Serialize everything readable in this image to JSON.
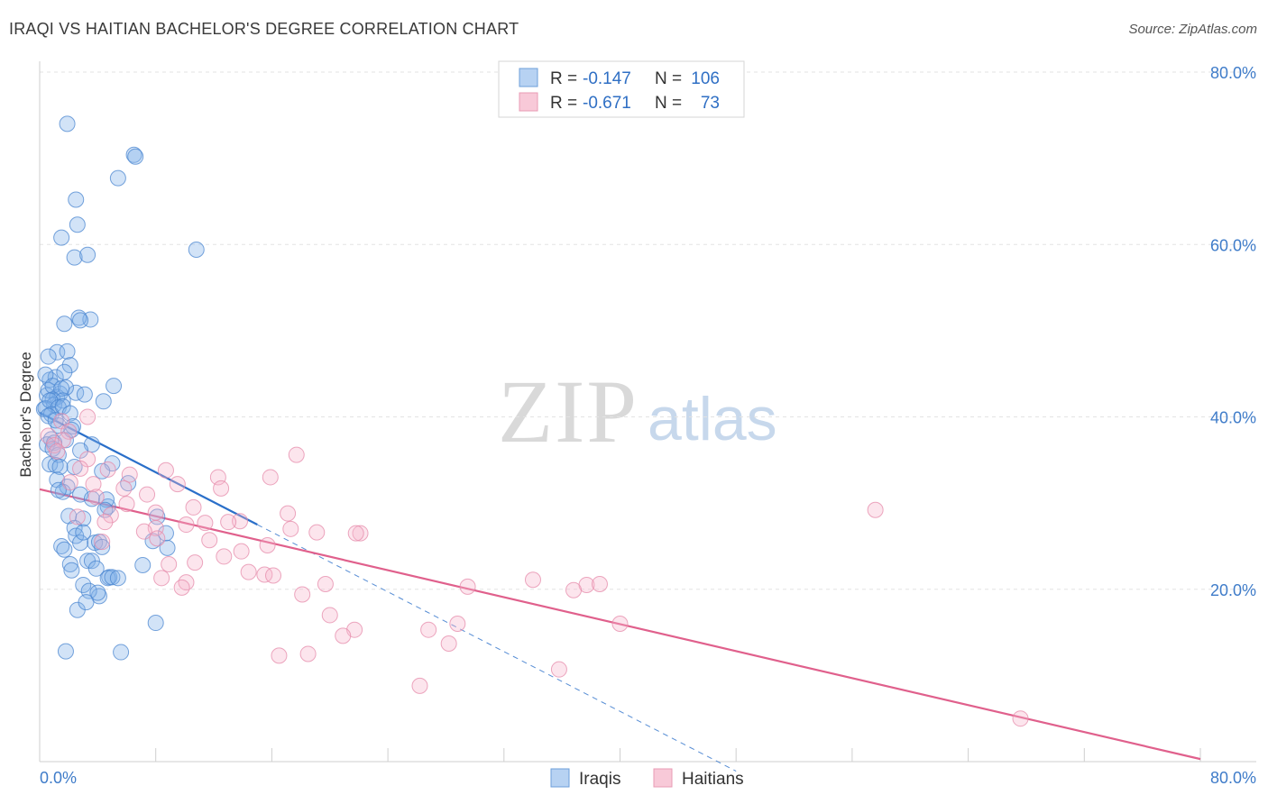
{
  "title": "IRAQI VS HAITIAN BACHELOR'S DEGREE CORRELATION CHART",
  "source": "Source: ZipAtlas.com",
  "watermark": {
    "zip": "ZIP",
    "atlas": "atlas"
  },
  "chart_data": {
    "type": "scatter",
    "ylabel": "Bachelor's Degree",
    "xlim": [
      0,
      80
    ],
    "ylim": [
      0,
      80
    ],
    "x_tick_labels": [
      "0.0%",
      "80.0%"
    ],
    "y_ticks": [
      20,
      40,
      60,
      80
    ],
    "y_tick_labels": [
      "20.0%",
      "40.0%",
      "60.0%",
      "80.0%"
    ],
    "legend_position": "bottom-center",
    "stats": [
      {
        "r_label": "R =",
        "r": "-0.147",
        "n_label": "N =",
        "n": "106"
      },
      {
        "r_label": "R =",
        "r": "-0.671",
        "n_label": "N =",
        "n": "73"
      }
    ],
    "series": [
      {
        "name": "Iraqis",
        "color": "#7fb0e8",
        "edge": "#4a86d0",
        "trend_color": "#2a6fc9",
        "trend": {
          "x0": 0,
          "y0": 40.5,
          "x1": 15,
          "y1": 27.5,
          "dash_to_x": 48
        },
        "points": [
          [
            1.9,
            74.0
          ],
          [
            6.5,
            70.4
          ],
          [
            6.6,
            70.2
          ],
          [
            5.4,
            67.7
          ],
          [
            2.5,
            65.2
          ],
          [
            2.6,
            62.3
          ],
          [
            1.5,
            60.8
          ],
          [
            10.8,
            59.4
          ],
          [
            2.4,
            58.5
          ],
          [
            3.3,
            58.8
          ],
          [
            3.5,
            51.3
          ],
          [
            2.7,
            51.5
          ],
          [
            1.7,
            50.8
          ],
          [
            2.8,
            51.2
          ],
          [
            1.2,
            47.5
          ],
          [
            1.9,
            47.6
          ],
          [
            0.6,
            47.0
          ],
          [
            2.1,
            46.0
          ],
          [
            0.7,
            44.3
          ],
          [
            1.1,
            44.6
          ],
          [
            1.7,
            45.2
          ],
          [
            0.4,
            44.9
          ],
          [
            5.1,
            43.6
          ],
          [
            2.5,
            42.8
          ],
          [
            1.4,
            42.7
          ],
          [
            0.5,
            42.5
          ],
          [
            0.6,
            43.1
          ],
          [
            1.2,
            42.3
          ],
          [
            0.9,
            43.6
          ],
          [
            3.1,
            42.6
          ],
          [
            4.4,
            41.8
          ],
          [
            1.8,
            43.4
          ],
          [
            1.5,
            43.3
          ],
          [
            0.9,
            42.0
          ],
          [
            1.0,
            41.4
          ],
          [
            0.3,
            40.9
          ],
          [
            1.6,
            41.9
          ],
          [
            0.4,
            41.0
          ],
          [
            0.7,
            41.9
          ],
          [
            1.3,
            41.1
          ],
          [
            0.8,
            40.3
          ],
          [
            1.6,
            41.2
          ],
          [
            2.1,
            40.4
          ],
          [
            0.6,
            40.1
          ],
          [
            1.3,
            39.0
          ],
          [
            2.3,
            38.9
          ],
          [
            1.8,
            37.3
          ],
          [
            0.8,
            37.4
          ],
          [
            0.5,
            36.8
          ],
          [
            1.0,
            37.0
          ],
          [
            3.6,
            36.8
          ],
          [
            0.9,
            36.3
          ],
          [
            2.8,
            36.1
          ],
          [
            1.3,
            35.6
          ],
          [
            0.7,
            34.5
          ],
          [
            5.0,
            34.6
          ],
          [
            1.1,
            34.4
          ],
          [
            2.4,
            34.2
          ],
          [
            1.4,
            34.2
          ],
          [
            4.3,
            33.7
          ],
          [
            1.2,
            32.7
          ],
          [
            6.1,
            32.3
          ],
          [
            1.9,
            31.9
          ],
          [
            1.6,
            31.3
          ],
          [
            2.8,
            31.0
          ],
          [
            1.3,
            31.5
          ],
          [
            3.6,
            30.5
          ],
          [
            4.7,
            29.6
          ],
          [
            4.6,
            30.4
          ],
          [
            4.5,
            29.2
          ],
          [
            2.0,
            28.5
          ],
          [
            3.0,
            28.2
          ],
          [
            8.1,
            28.4
          ],
          [
            2.4,
            27.1
          ],
          [
            7.8,
            25.6
          ],
          [
            2.5,
            26.2
          ],
          [
            3.8,
            25.4
          ],
          [
            1.5,
            25.0
          ],
          [
            4.1,
            25.5
          ],
          [
            8.7,
            26.5
          ],
          [
            2.8,
            25.4
          ],
          [
            8.8,
            24.8
          ],
          [
            1.7,
            24.6
          ],
          [
            4.3,
            24.9
          ],
          [
            3.3,
            23.3
          ],
          [
            3.6,
            23.3
          ],
          [
            2.1,
            22.9
          ],
          [
            7.1,
            22.8
          ],
          [
            2.2,
            22.2
          ],
          [
            4.8,
            21.4
          ],
          [
            3.9,
            22.4
          ],
          [
            4.7,
            21.3
          ],
          [
            5.0,
            21.4
          ],
          [
            5.4,
            21.3
          ],
          [
            3.0,
            20.5
          ],
          [
            4.1,
            19.2
          ],
          [
            3.4,
            19.8
          ],
          [
            4.0,
            19.6
          ],
          [
            2.6,
            17.6
          ],
          [
            8.0,
            16.1
          ],
          [
            1.8,
            12.8
          ],
          [
            5.6,
            12.7
          ],
          [
            3.2,
            18.5
          ],
          [
            1.1,
            39.6
          ],
          [
            3.0,
            26.6
          ],
          [
            2.2,
            38.5
          ]
        ]
      },
      {
        "name": "Haitians",
        "color": "#f5b5ca",
        "edge": "#e58aa9",
        "trend_color": "#e0608c",
        "trend": {
          "x0": 0,
          "y0": 31.6,
          "x1": 80,
          "y1": 0.3
        },
        "points": [
          [
            3.3,
            40.0
          ],
          [
            1.5,
            39.5
          ],
          [
            2.0,
            38.3
          ],
          [
            0.6,
            37.8
          ],
          [
            1.6,
            37.3
          ],
          [
            1.0,
            36.7
          ],
          [
            17.7,
            35.6
          ],
          [
            3.3,
            35.1
          ],
          [
            2.8,
            34.0
          ],
          [
            4.7,
            33.9
          ],
          [
            8.7,
            33.8
          ],
          [
            15.9,
            33.0
          ],
          [
            6.2,
            33.3
          ],
          [
            12.3,
            33.0
          ],
          [
            3.7,
            32.2
          ],
          [
            2.1,
            32.4
          ],
          [
            9.5,
            32.2
          ],
          [
            12.5,
            31.7
          ],
          [
            5.8,
            31.7
          ],
          [
            7.4,
            31.0
          ],
          [
            3.9,
            30.7
          ],
          [
            6.0,
            29.9
          ],
          [
            10.6,
            29.5
          ],
          [
            57.6,
            29.2
          ],
          [
            4.9,
            28.6
          ],
          [
            17.1,
            28.8
          ],
          [
            8.0,
            28.9
          ],
          [
            2.6,
            28.4
          ],
          [
            13.8,
            27.9
          ],
          [
            11.4,
            27.7
          ],
          [
            10.1,
            27.5
          ],
          [
            4.5,
            27.8
          ],
          [
            13.0,
            27.8
          ],
          [
            8.0,
            27.1
          ],
          [
            17.3,
            27.0
          ],
          [
            7.2,
            26.7
          ],
          [
            19.1,
            26.6
          ],
          [
            22.1,
            26.5
          ],
          [
            21.8,
            26.5
          ],
          [
            8.1,
            25.9
          ],
          [
            11.7,
            25.7
          ],
          [
            4.3,
            25.5
          ],
          [
            15.7,
            25.1
          ],
          [
            13.9,
            24.4
          ],
          [
            12.7,
            23.8
          ],
          [
            10.7,
            23.1
          ],
          [
            8.9,
            22.9
          ],
          [
            14.4,
            22.0
          ],
          [
            15.5,
            21.7
          ],
          [
            16.1,
            21.6
          ],
          [
            8.4,
            21.3
          ],
          [
            10.1,
            20.8
          ],
          [
            9.8,
            20.2
          ],
          [
            19.7,
            20.6
          ],
          [
            34.0,
            21.1
          ],
          [
            37.7,
            20.5
          ],
          [
            38.6,
            20.6
          ],
          [
            29.5,
            20.3
          ],
          [
            36.8,
            19.9
          ],
          [
            18.1,
            19.4
          ],
          [
            20.0,
            17.0
          ],
          [
            40.0,
            16.0
          ],
          [
            26.8,
            15.3
          ],
          [
            28.8,
            16.0
          ],
          [
            21.7,
            15.3
          ],
          [
            20.9,
            14.6
          ],
          [
            28.2,
            13.7
          ],
          [
            18.5,
            12.5
          ],
          [
            16.5,
            12.3
          ],
          [
            35.8,
            10.7
          ],
          [
            26.2,
            8.8
          ],
          [
            67.6,
            5.0
          ],
          [
            1.2,
            36.0
          ]
        ]
      }
    ]
  }
}
